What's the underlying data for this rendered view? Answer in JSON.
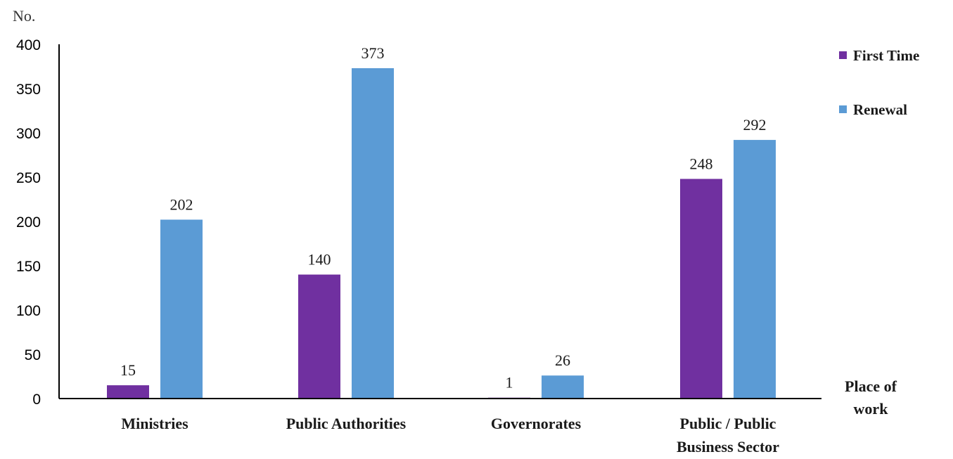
{
  "chart_data": {
    "type": "bar",
    "y_unit_label": "No.",
    "xlabel": [
      "Place of",
      "work"
    ],
    "categories": [
      [
        "Ministries"
      ],
      [
        "Public Authorities"
      ],
      [
        "Governorates"
      ],
      [
        "Public / Public",
        "Business Sector"
      ]
    ],
    "series": [
      {
        "name": "First Time",
        "color": "#7030a0",
        "values": [
          15,
          140,
          1,
          248
        ]
      },
      {
        "name": "Renewal",
        "color": "#5b9bd5",
        "values": [
          202,
          373,
          26,
          292
        ]
      }
    ],
    "ylim": [
      0,
      400
    ],
    "yticks": [
      0,
      50,
      100,
      150,
      200,
      250,
      300,
      350,
      400
    ],
    "legend_position": "top-right",
    "grid": false
  }
}
